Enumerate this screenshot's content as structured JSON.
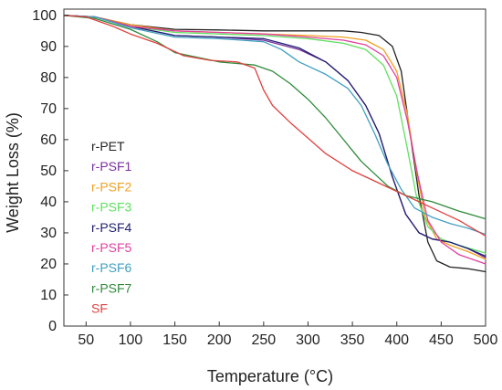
{
  "chart_data": {
    "type": "line",
    "title": "",
    "xlabel": "Temperature (°C)",
    "ylabel": "Weight Loss (%)",
    "xlim": [
      25,
      500
    ],
    "ylim": [
      0,
      102
    ],
    "x_ticks": [
      50,
      100,
      150,
      200,
      250,
      300,
      350,
      400,
      450,
      500
    ],
    "y_ticks": [
      0,
      10,
      20,
      30,
      40,
      50,
      60,
      70,
      80,
      90,
      100
    ],
    "legend_position": "left",
    "grid": false,
    "series": [
      {
        "name": "r-PET",
        "color": "#222222",
        "points": [
          [
            25,
            100
          ],
          [
            60,
            99.5
          ],
          [
            100,
            97
          ],
          [
            150,
            95.5
          ],
          [
            200,
            95.3
          ],
          [
            250,
            95
          ],
          [
            300,
            95
          ],
          [
            340,
            95
          ],
          [
            360,
            94.5
          ],
          [
            380,
            93.5
          ],
          [
            395,
            90
          ],
          [
            405,
            82
          ],
          [
            415,
            62
          ],
          [
            425,
            42
          ],
          [
            435,
            27
          ],
          [
            445,
            21
          ],
          [
            460,
            19
          ],
          [
            480,
            18.5
          ],
          [
            500,
            17.5
          ]
        ]
      },
      {
        "name": "r-PSF1",
        "color": "#7a2fa0",
        "points": [
          [
            25,
            100
          ],
          [
            60,
            99.5
          ],
          [
            100,
            96.5
          ],
          [
            150,
            93.5
          ],
          [
            200,
            93
          ],
          [
            250,
            92
          ],
          [
            290,
            89
          ],
          [
            320,
            85
          ],
          [
            345,
            79
          ],
          [
            365,
            71
          ],
          [
            380,
            62
          ],
          [
            395,
            48
          ],
          [
            410,
            36
          ],
          [
            425,
            30
          ],
          [
            440,
            28
          ],
          [
            460,
            27
          ],
          [
            480,
            25
          ],
          [
            500,
            22
          ]
        ]
      },
      {
        "name": "r-PSF2",
        "color": "#f0a020",
        "points": [
          [
            25,
            100
          ],
          [
            60,
            99.5
          ],
          [
            100,
            97
          ],
          [
            150,
            95
          ],
          [
            200,
            94.5
          ],
          [
            250,
            94
          ],
          [
            300,
            93.5
          ],
          [
            340,
            93
          ],
          [
            365,
            92
          ],
          [
            385,
            89
          ],
          [
            400,
            82
          ],
          [
            412,
            68
          ],
          [
            422,
            50
          ],
          [
            432,
            35
          ],
          [
            445,
            28
          ],
          [
            460,
            26
          ],
          [
            480,
            24
          ],
          [
            500,
            21.5
          ]
        ]
      },
      {
        "name": "r-PSF3",
        "color": "#60e060",
        "points": [
          [
            25,
            100
          ],
          [
            60,
            99.5
          ],
          [
            100,
            96.5
          ],
          [
            150,
            94.5
          ],
          [
            200,
            94
          ],
          [
            250,
            93.5
          ],
          [
            300,
            92.5
          ],
          [
            340,
            91
          ],
          [
            365,
            89
          ],
          [
            385,
            84
          ],
          [
            400,
            74
          ],
          [
            412,
            57
          ],
          [
            422,
            42
          ],
          [
            435,
            32
          ],
          [
            450,
            28
          ],
          [
            470,
            26
          ],
          [
            500,
            23.5
          ]
        ]
      },
      {
        "name": "r-PSF4",
        "color": "#202070",
        "points": [
          [
            25,
            100
          ],
          [
            60,
            99.5
          ],
          [
            100,
            96.5
          ],
          [
            150,
            93.5
          ],
          [
            200,
            93
          ],
          [
            250,
            92.5
          ],
          [
            290,
            89.5
          ],
          [
            320,
            85
          ],
          [
            345,
            79
          ],
          [
            365,
            71
          ],
          [
            380,
            62
          ],
          [
            395,
            48
          ],
          [
            410,
            36
          ],
          [
            425,
            30
          ],
          [
            440,
            28
          ],
          [
            460,
            27
          ],
          [
            480,
            25
          ],
          [
            500,
            22.5
          ]
        ]
      },
      {
        "name": "r-PSF5",
        "color": "#e040a0",
        "points": [
          [
            25,
            100
          ],
          [
            60,
            99.5
          ],
          [
            100,
            96.5
          ],
          [
            150,
            95
          ],
          [
            200,
            94.5
          ],
          [
            250,
            94
          ],
          [
            300,
            93
          ],
          [
            340,
            92
          ],
          [
            365,
            90.5
          ],
          [
            385,
            87
          ],
          [
            400,
            80
          ],
          [
            412,
            66
          ],
          [
            424,
            48
          ],
          [
            435,
            34
          ],
          [
            450,
            27
          ],
          [
            470,
            23
          ],
          [
            500,
            20
          ]
        ]
      },
      {
        "name": "r-PSF6",
        "color": "#40a0c0",
        "points": [
          [
            25,
            100
          ],
          [
            60,
            99.5
          ],
          [
            100,
            96
          ],
          [
            150,
            93
          ],
          [
            200,
            92.5
          ],
          [
            250,
            91.5
          ],
          [
            270,
            89
          ],
          [
            290,
            85
          ],
          [
            320,
            81
          ],
          [
            345,
            76.5
          ],
          [
            360,
            71
          ],
          [
            375,
            62
          ],
          [
            390,
            52
          ],
          [
            405,
            44
          ],
          [
            420,
            38
          ],
          [
            440,
            35
          ],
          [
            460,
            33
          ],
          [
            480,
            31.5
          ],
          [
            500,
            29.5
          ]
        ]
      },
      {
        "name": "r-PSF7",
        "color": "#2f8a3a",
        "points": [
          [
            25,
            100
          ],
          [
            60,
            99
          ],
          [
            100,
            95.5
          ],
          [
            130,
            91.5
          ],
          [
            150,
            88
          ],
          [
            200,
            85
          ],
          [
            240,
            84
          ],
          [
            260,
            82
          ],
          [
            280,
            78
          ],
          [
            300,
            73
          ],
          [
            320,
            67
          ],
          [
            340,
            60
          ],
          [
            360,
            53
          ],
          [
            375,
            49
          ],
          [
            390,
            45
          ],
          [
            410,
            42
          ],
          [
            440,
            40
          ],
          [
            470,
            37
          ],
          [
            500,
            34.5
          ]
        ]
      },
      {
        "name": "SF",
        "color": "#e04040",
        "points": [
          [
            25,
            100
          ],
          [
            50,
            99.5
          ],
          [
            80,
            96.5
          ],
          [
            100,
            94
          ],
          [
            130,
            91
          ],
          [
            160,
            87
          ],
          [
            190,
            85.5
          ],
          [
            220,
            85
          ],
          [
            240,
            83
          ],
          [
            250,
            76
          ],
          [
            260,
            71
          ],
          [
            280,
            65.5
          ],
          [
            300,
            60.5
          ],
          [
            320,
            55.5
          ],
          [
            350,
            50
          ],
          [
            380,
            46
          ],
          [
            410,
            42
          ],
          [
            440,
            38
          ],
          [
            470,
            34
          ],
          [
            500,
            29
          ]
        ]
      }
    ]
  }
}
